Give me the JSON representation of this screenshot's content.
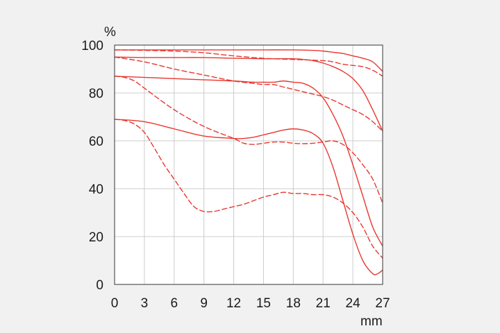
{
  "chart_data": {
    "type": "line",
    "title": "",
    "xlabel": "mm",
    "ylabel": "%",
    "xlim": [
      0,
      27
    ],
    "ylim": [
      0,
      100
    ],
    "x_ticks": [
      0,
      3,
      6,
      9,
      12,
      15,
      18,
      21,
      24,
      27
    ],
    "y_ticks": [
      0,
      20,
      40,
      60,
      80,
      100
    ],
    "grid": true,
    "legend": "none",
    "colors": {
      "line": "#e8362f",
      "grid": "#cccccc",
      "frame": "#555555",
      "background": "#ffffff"
    },
    "series": [
      {
        "style": "solid",
        "x": [
          0,
          3,
          6,
          9,
          12,
          15,
          18,
          20,
          21,
          22,
          23,
          24,
          25,
          26,
          27
        ],
        "y": [
          98,
          98,
          98,
          98,
          98,
          98,
          98,
          97.8,
          97.5,
          97,
          96.5,
          95.5,
          94.5,
          93,
          89
        ]
      },
      {
        "style": "dashed",
        "x": [
          0,
          3,
          6,
          9,
          12,
          15,
          18,
          21,
          22,
          23,
          24,
          25,
          26,
          27
        ],
        "y": [
          98,
          97.8,
          97.5,
          96.8,
          95.5,
          94.5,
          94,
          93.5,
          93,
          92,
          91.5,
          91,
          89.5,
          87
        ]
      },
      {
        "style": "solid",
        "x": [
          0,
          3,
          6,
          9,
          12,
          15,
          18,
          19,
          20,
          21,
          22,
          23,
          24,
          25,
          26,
          27
        ],
        "y": [
          95,
          94.8,
          94.8,
          94.8,
          94.5,
          94.3,
          94.3,
          94,
          93.5,
          92.5,
          91,
          89,
          86,
          81,
          73,
          64
        ]
      },
      {
        "style": "dashed",
        "x": [
          0,
          3,
          6,
          9,
          12,
          14,
          15,
          16,
          17,
          18,
          19,
          20,
          21,
          22,
          23,
          24,
          25,
          26,
          27
        ],
        "y": [
          95,
          93,
          90,
          87.5,
          85,
          84,
          83.5,
          83.5,
          82.5,
          81.5,
          80.5,
          79.5,
          78.5,
          77,
          75,
          73,
          71,
          68,
          64
        ]
      },
      {
        "style": "solid",
        "x": [
          0,
          3,
          6,
          9,
          12,
          14,
          15,
          16,
          17,
          18,
          19,
          20,
          21,
          22,
          23,
          24,
          25,
          26,
          27
        ],
        "y": [
          87,
          86.5,
          86,
          85.5,
          85,
          84.5,
          84.5,
          84.5,
          85,
          84.5,
          84,
          82,
          78,
          71,
          62,
          50,
          37,
          24,
          16
        ]
      },
      {
        "style": "dashed",
        "x": [
          0,
          1,
          2,
          3,
          6,
          9,
          12,
          13,
          14,
          15,
          16,
          17,
          18,
          19,
          20,
          21,
          22,
          23,
          24,
          25,
          26,
          27
        ],
        "y": [
          87,
          86.5,
          85,
          82,
          73,
          66,
          61,
          59,
          58.5,
          59,
          59.5,
          59.5,
          59,
          58.8,
          59,
          59.5,
          60,
          58.5,
          55,
          50,
          44,
          34
        ]
      },
      {
        "style": "solid",
        "x": [
          0,
          3,
          6,
          9,
          12,
          13,
          14,
          15,
          16,
          17,
          18,
          19,
          20,
          21,
          22,
          23,
          24,
          25,
          26,
          26.5,
          27
        ],
        "y": [
          69,
          68,
          65,
          62,
          61,
          61,
          61.5,
          62.5,
          63.5,
          64.5,
          65,
          64.5,
          63,
          59,
          49,
          35,
          21,
          10,
          4.5,
          4.5,
          6
        ]
      },
      {
        "style": "dashed",
        "x": [
          0,
          1,
          2,
          3,
          4,
          5,
          6,
          7,
          8,
          9,
          10,
          11,
          12,
          13,
          14,
          15,
          16,
          17,
          18,
          19,
          20,
          21,
          22,
          23,
          24,
          25,
          26,
          27
        ],
        "y": [
          69,
          68.5,
          67,
          63.5,
          57,
          50,
          44,
          38,
          32.5,
          30.5,
          30.5,
          31.5,
          32.5,
          33.5,
          35,
          36.5,
          37.5,
          38.5,
          38,
          38,
          37.5,
          37.5,
          36.5,
          34,
          30,
          24,
          16,
          11
        ]
      }
    ]
  }
}
